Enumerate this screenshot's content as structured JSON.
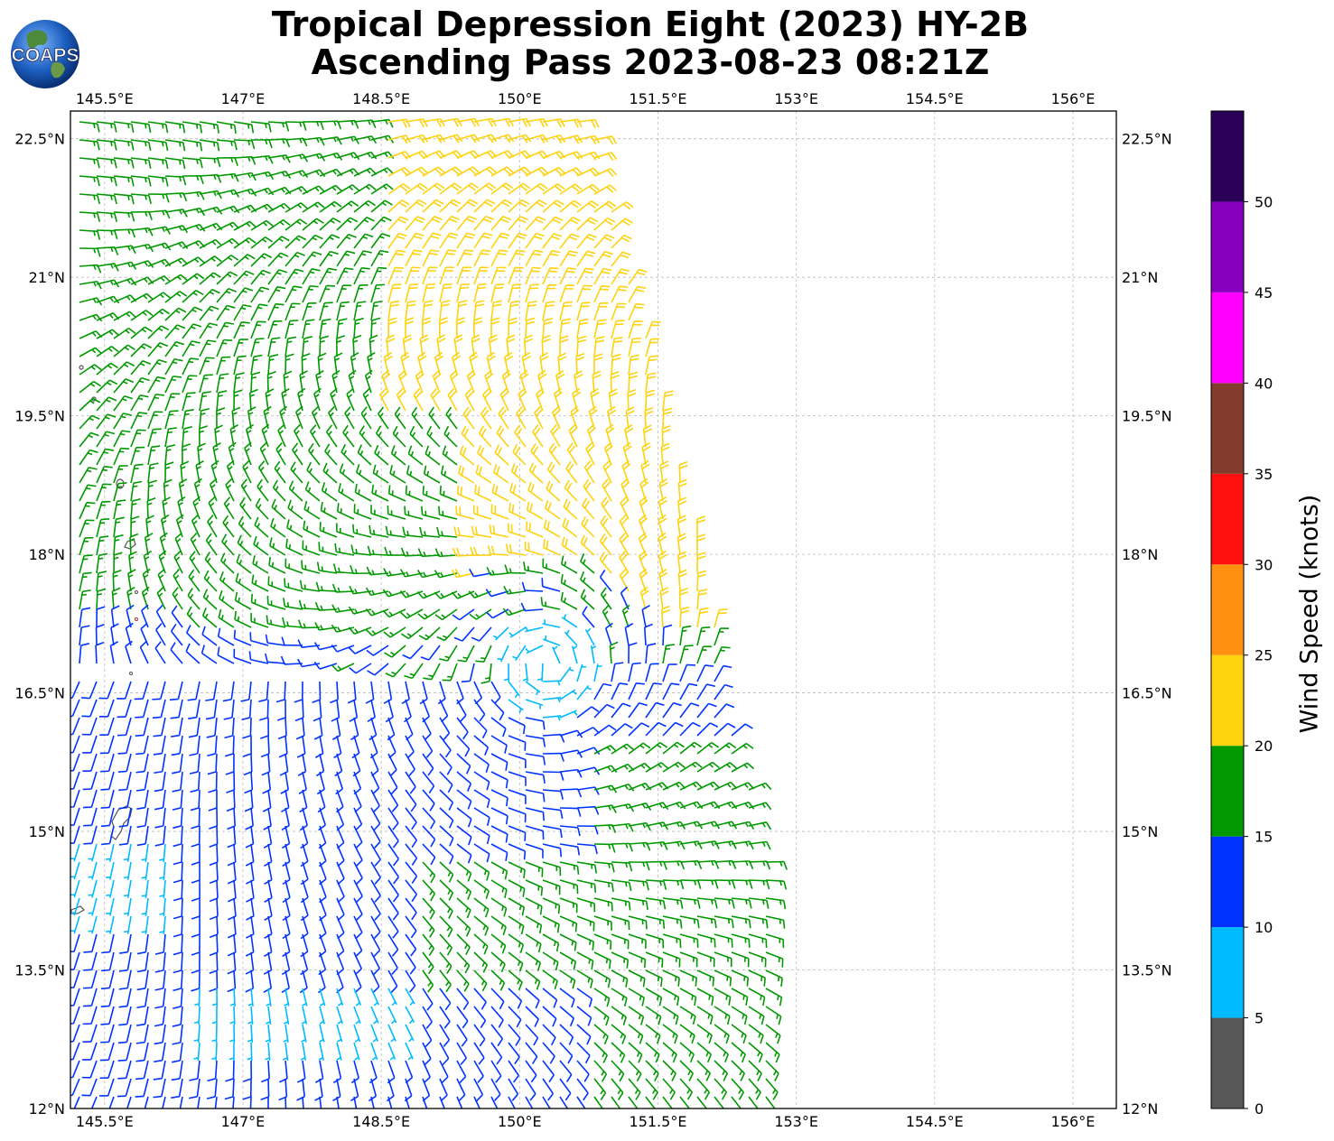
{
  "header": {
    "title_line1": "Tropical Depression Eight (2023) HY-2B",
    "title_line2": "Ascending Pass 2023-08-23 08:21Z"
  },
  "logo": {
    "text": "COAPS",
    "icon": "globe-icon"
  },
  "map": {
    "lon_ticks": [
      "145.5°E",
      "147°E",
      "148.5°E",
      "150°E",
      "151.5°E",
      "153°E",
      "154.5°E",
      "156°E"
    ],
    "lat_ticks": [
      "22.5°N",
      "21°N",
      "19.5°N",
      "18°N",
      "16.5°N",
      "15°N",
      "13.5°N",
      "12°N"
    ],
    "lon_range": [
      145.13,
      156.47
    ],
    "lat_range": [
      12.0,
      22.8
    ],
    "gridlines": true,
    "center": {
      "lon": 150.3,
      "lat": 16.8
    }
  },
  "colorbar": {
    "label": "Wind Speed (knots)",
    "ticks": [
      "0",
      "5",
      "10",
      "15",
      "20",
      "25",
      "30",
      "35",
      "40",
      "45",
      "50"
    ],
    "bins": [
      {
        "min": 0,
        "max": 5,
        "color": "#585858"
      },
      {
        "min": 5,
        "max": 10,
        "color": "#00bbff"
      },
      {
        "min": 10,
        "max": 15,
        "color": "#0033ff"
      },
      {
        "min": 15,
        "max": 20,
        "color": "#009900"
      },
      {
        "min": 20,
        "max": 25,
        "color": "#ffd20f"
      },
      {
        "min": 25,
        "max": 30,
        "color": "#ff9010"
      },
      {
        "min": 30,
        "max": 35,
        "color": "#ff1010"
      },
      {
        "min": 35,
        "max": 40,
        "color": "#833b2c"
      },
      {
        "min": 40,
        "max": 45,
        "color": "#ff00ff"
      },
      {
        "min": 45,
        "max": 50,
        "color": "#8600be"
      },
      {
        "min": 50,
        "max": 55,
        "color": "#2a0059"
      }
    ]
  }
}
